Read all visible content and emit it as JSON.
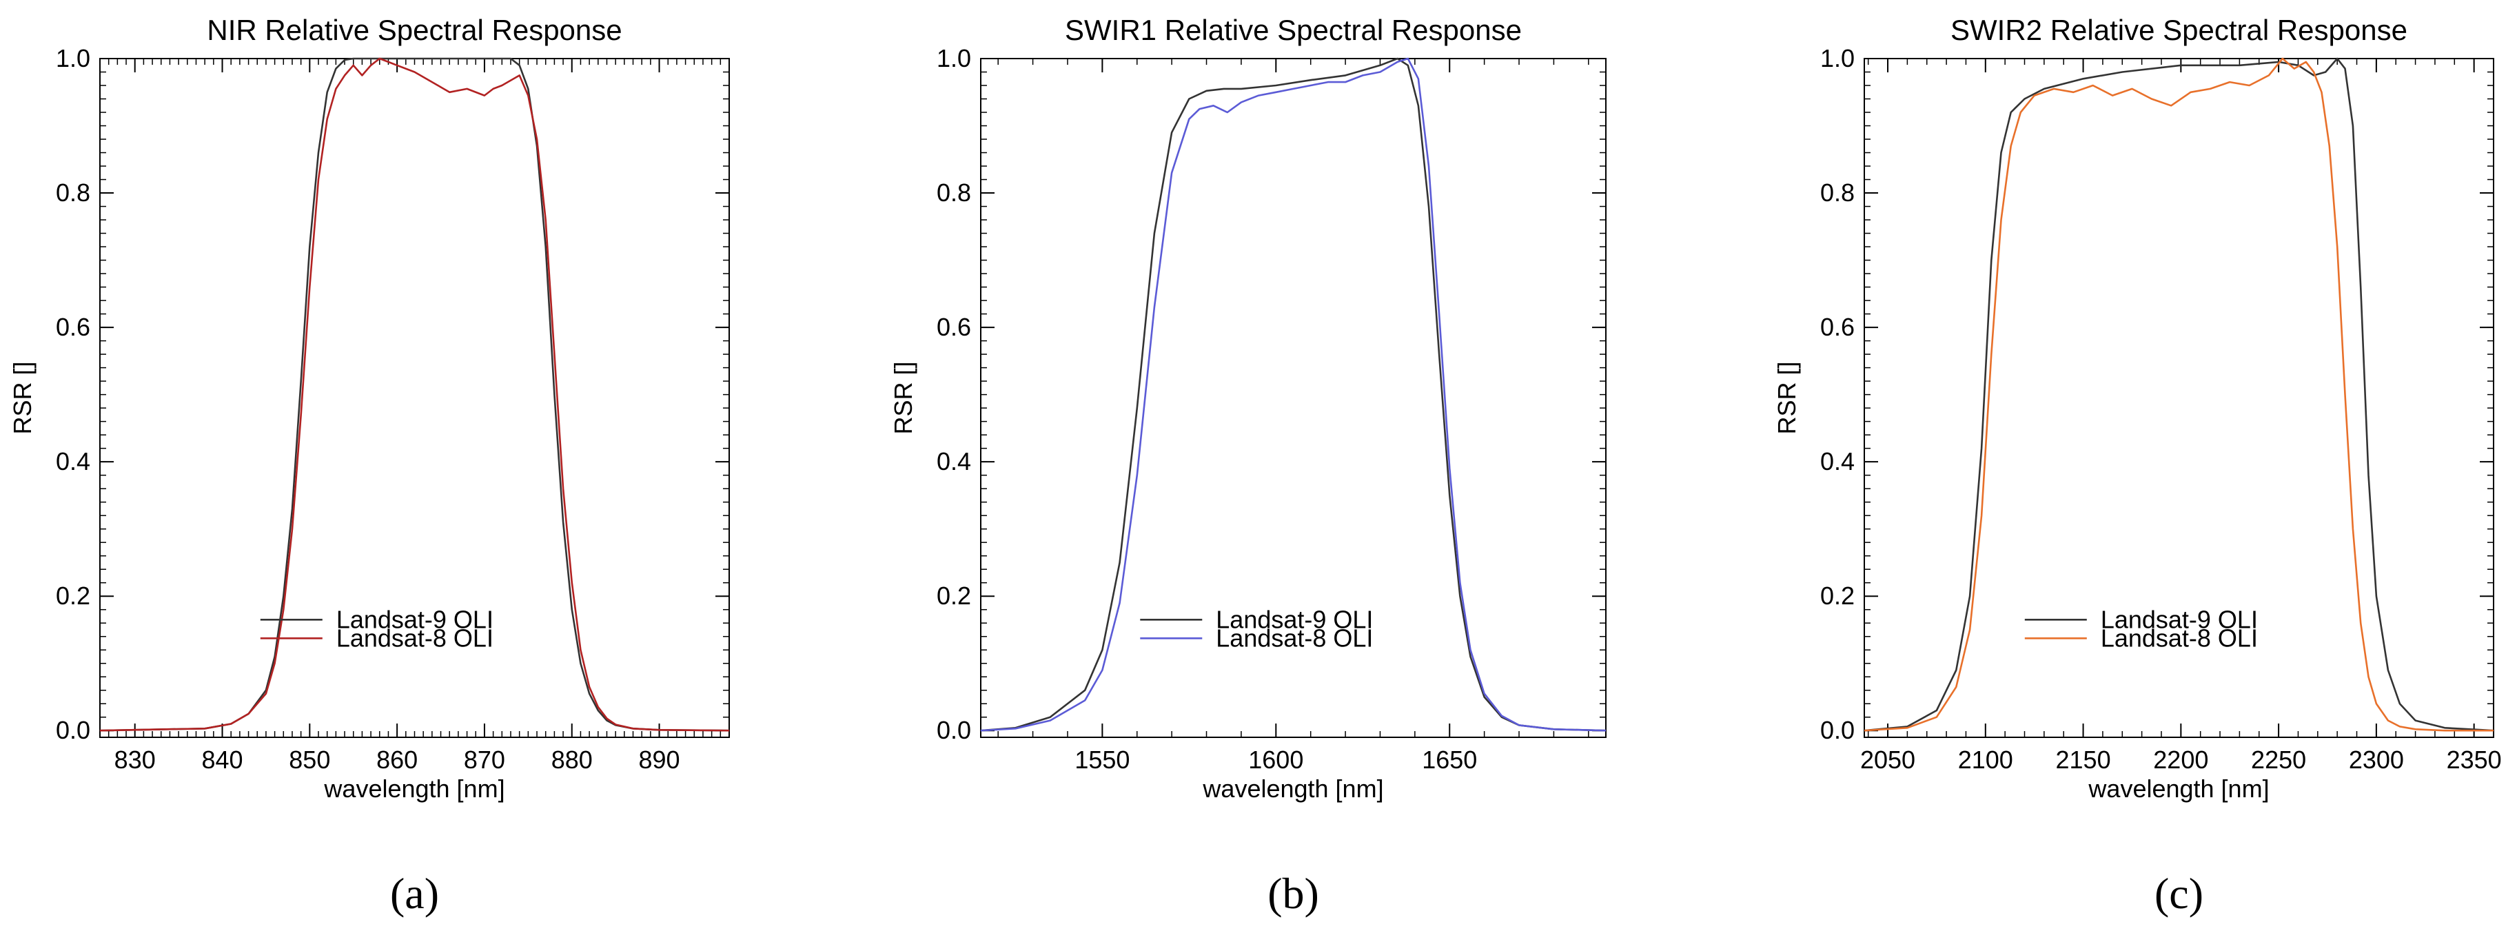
{
  "chart_data": [
    {
      "type": "line",
      "panel_label": "(a)",
      "title": "NIR Relative Spectral Response",
      "xlabel": "wavelength [nm]",
      "ylabel": "RSR []",
      "xlim": [
        826,
        898
      ],
      "ylim": [
        -0.01,
        1.0
      ],
      "xticks": [
        830,
        840,
        850,
        860,
        870,
        880,
        890
      ],
      "xtick_labels": [
        "830",
        "840",
        "850",
        "860",
        "870",
        "880",
        "890"
      ],
      "yticks": [
        0.0,
        0.2,
        0.4,
        0.6,
        0.8,
        1.0
      ],
      "ytick_labels": [
        "0.0",
        "0.2",
        "0.4",
        "0.6",
        "0.8",
        "1.0"
      ],
      "legend_position": "lower-center",
      "series": [
        {
          "name": "Landsat-9 OLI",
          "color": "#333333",
          "x": [
            826,
            838,
            841,
            843,
            845,
            846,
            847,
            848,
            849,
            850,
            851,
            852,
            853,
            854,
            855,
            856,
            860,
            865,
            870,
            873,
            874,
            875,
            876,
            877,
            878,
            879,
            880,
            881,
            882,
            883,
            884,
            885,
            887,
            890,
            898
          ],
          "y": [
            0.0,
            0.003,
            0.01,
            0.025,
            0.06,
            0.11,
            0.2,
            0.33,
            0.52,
            0.72,
            0.86,
            0.95,
            0.985,
            0.998,
            1.0,
            1.0,
            1.0,
            1.0,
            1.0,
            1.0,
            0.99,
            0.955,
            0.87,
            0.72,
            0.5,
            0.31,
            0.18,
            0.1,
            0.055,
            0.03,
            0.015,
            0.008,
            0.003,
            0.001,
            0.0
          ]
        },
        {
          "name": "Landsat-8 OLI",
          "color": "#b22222",
          "x": [
            826,
            838,
            841,
            843,
            845,
            846,
            847,
            848,
            849,
            850,
            851,
            852,
            853,
            854,
            855,
            856,
            857,
            858,
            859,
            860,
            862,
            864,
            866,
            868,
            870,
            871,
            872,
            874,
            875,
            876,
            877,
            878,
            879,
            880,
            881,
            882,
            883,
            884,
            885,
            887,
            890,
            898
          ],
          "y": [
            0.0,
            0.003,
            0.01,
            0.025,
            0.055,
            0.1,
            0.18,
            0.3,
            0.47,
            0.66,
            0.82,
            0.91,
            0.955,
            0.975,
            0.99,
            0.975,
            0.99,
            1.0,
            0.995,
            0.99,
            0.98,
            0.965,
            0.95,
            0.955,
            0.945,
            0.955,
            0.96,
            0.975,
            0.945,
            0.88,
            0.76,
            0.56,
            0.36,
            0.22,
            0.12,
            0.065,
            0.035,
            0.018,
            0.009,
            0.003,
            0.001,
            0.0
          ]
        }
      ]
    },
    {
      "type": "line",
      "panel_label": "(b)",
      "title": "SWIR1 Relative Spectral Response",
      "xlabel": "wavelength [nm]",
      "ylabel": "RSR []",
      "xlim": [
        1515,
        1695
      ],
      "ylim": [
        -0.01,
        1.0
      ],
      "xticks": [
        1550,
        1600,
        1650
      ],
      "xtick_labels": [
        "1550",
        "1600",
        "1650"
      ],
      "yticks": [
        0.0,
        0.2,
        0.4,
        0.6,
        0.8,
        1.0
      ],
      "ytick_labels": [
        "0.0",
        "0.2",
        "0.4",
        "0.6",
        "0.8",
        "1.0"
      ],
      "legend_position": "lower-center",
      "series": [
        {
          "name": "Landsat-9 OLI",
          "color": "#333333",
          "x": [
            1515,
            1525,
            1535,
            1545,
            1550,
            1555,
            1560,
            1565,
            1570,
            1575,
            1580,
            1585,
            1590,
            1600,
            1610,
            1620,
            1630,
            1635,
            1638,
            1641,
            1644,
            1647,
            1650,
            1653,
            1656,
            1660,
            1665,
            1670,
            1680,
            1695
          ],
          "y": [
            0.0,
            0.004,
            0.02,
            0.06,
            0.12,
            0.25,
            0.48,
            0.74,
            0.89,
            0.94,
            0.952,
            0.955,
            0.955,
            0.96,
            0.968,
            0.975,
            0.99,
            1.0,
            0.99,
            0.93,
            0.78,
            0.56,
            0.35,
            0.2,
            0.11,
            0.05,
            0.02,
            0.008,
            0.002,
            0.0
          ]
        },
        {
          "name": "Landsat-8 OLI",
          "color": "#5b5bd6",
          "x": [
            1515,
            1525,
            1535,
            1545,
            1550,
            1555,
            1560,
            1565,
            1570,
            1575,
            1578,
            1582,
            1586,
            1590,
            1595,
            1600,
            1605,
            1610,
            1615,
            1620,
            1625,
            1630,
            1635,
            1638,
            1641,
            1644,
            1647,
            1650,
            1653,
            1656,
            1660,
            1665,
            1670,
            1680,
            1695
          ],
          "y": [
            0.0,
            0.003,
            0.015,
            0.045,
            0.09,
            0.19,
            0.38,
            0.63,
            0.83,
            0.91,
            0.925,
            0.93,
            0.92,
            0.935,
            0.945,
            0.95,
            0.955,
            0.96,
            0.965,
            0.965,
            0.975,
            0.98,
            0.995,
            1.0,
            0.97,
            0.84,
            0.62,
            0.39,
            0.22,
            0.12,
            0.055,
            0.022,
            0.008,
            0.002,
            0.0
          ]
        }
      ]
    },
    {
      "type": "line",
      "panel_label": "(c)",
      "title": "SWIR2 Relative Spectral Response",
      "xlabel": "wavelength [nm]",
      "ylabel": "RSR []",
      "xlim": [
        2038,
        2360
      ],
      "ylim": [
        -0.01,
        1.0
      ],
      "xticks": [
        2050,
        2100,
        2150,
        2200,
        2250,
        2300,
        2350
      ],
      "xtick_labels": [
        "2050",
        "2100",
        "2150",
        "2200",
        "2250",
        "2300",
        "2350"
      ],
      "yticks": [
        0.0,
        0.2,
        0.4,
        0.6,
        0.8,
        1.0
      ],
      "ytick_labels": [
        "0.0",
        "0.2",
        "0.4",
        "0.6",
        "0.8",
        "1.0"
      ],
      "legend_position": "lower-center",
      "series": [
        {
          "name": "Landsat-9 OLI",
          "color": "#333333",
          "x": [
            2038,
            2060,
            2075,
            2085,
            2092,
            2098,
            2103,
            2108,
            2113,
            2120,
            2130,
            2150,
            2170,
            2200,
            2230,
            2250,
            2260,
            2268,
            2274,
            2280,
            2284,
            2288,
            2292,
            2296,
            2300,
            2306,
            2312,
            2320,
            2335,
            2360
          ],
          "y": [
            0.0,
            0.006,
            0.03,
            0.09,
            0.2,
            0.42,
            0.7,
            0.86,
            0.92,
            0.94,
            0.955,
            0.97,
            0.98,
            0.99,
            0.99,
            0.995,
            0.99,
            0.975,
            0.98,
            1.0,
            0.985,
            0.9,
            0.66,
            0.38,
            0.2,
            0.09,
            0.04,
            0.015,
            0.004,
            0.0
          ]
        },
        {
          "name": "Landsat-8 OLI",
          "color": "#e8702a",
          "x": [
            2038,
            2060,
            2075,
            2085,
            2092,
            2098,
            2103,
            2108,
            2113,
            2118,
            2125,
            2135,
            2145,
            2155,
            2165,
            2175,
            2185,
            2195,
            2205,
            2215,
            2225,
            2235,
            2245,
            2252,
            2258,
            2264,
            2268,
            2272,
            2276,
            2280,
            2284,
            2288,
            2292,
            2296,
            2300,
            2306,
            2312,
            2320,
            2335,
            2360
          ],
          "y": [
            0.0,
            0.004,
            0.02,
            0.065,
            0.15,
            0.32,
            0.56,
            0.76,
            0.87,
            0.92,
            0.945,
            0.955,
            0.95,
            0.96,
            0.945,
            0.955,
            0.94,
            0.93,
            0.95,
            0.955,
            0.965,
            0.96,
            0.975,
            1.0,
            0.985,
            0.995,
            0.98,
            0.95,
            0.87,
            0.72,
            0.5,
            0.3,
            0.16,
            0.08,
            0.04,
            0.015,
            0.006,
            0.002,
            0.0,
            0.0
          ]
        }
      ]
    }
  ]
}
